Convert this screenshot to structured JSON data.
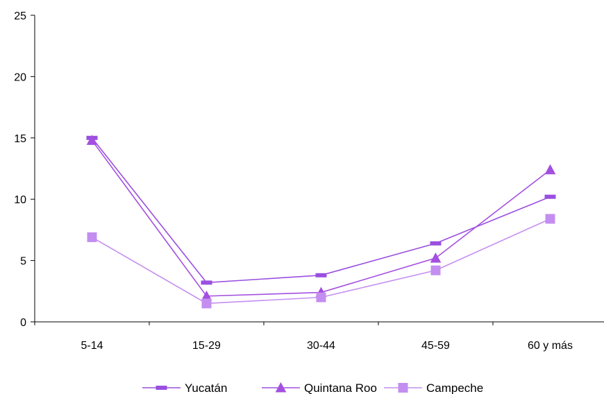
{
  "chart_data": {
    "type": "line",
    "categories": [
      "5-14",
      "15-29",
      "30-44",
      "45-59",
      "60 y más"
    ],
    "ylim": [
      0,
      25
    ],
    "yticks": [
      0,
      5,
      10,
      15,
      20,
      25
    ],
    "grid": false,
    "legend_position": "bottom",
    "series": [
      {
        "name": "Yucatán",
        "marker": "dash",
        "color": "#9a4fe0",
        "values": [
          15.0,
          3.2,
          3.8,
          6.4,
          10.2
        ]
      },
      {
        "name": "Quintana Roo",
        "marker": "triangle",
        "color": "#a44fe0",
        "values": [
          14.8,
          2.1,
          2.4,
          5.2,
          12.4
        ]
      },
      {
        "name": "Campeche",
        "marker": "square",
        "color": "#c48ef0",
        "values": [
          6.9,
          1.5,
          2.0,
          4.2,
          8.4
        ]
      }
    ]
  }
}
